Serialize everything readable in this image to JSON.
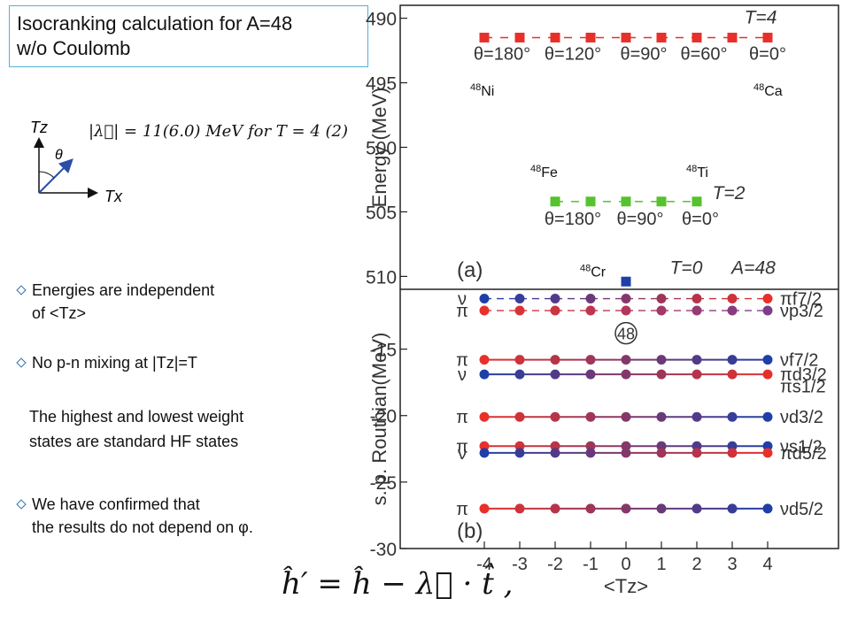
{
  "slide": {
    "title_line1": "Isocranking calculation for A=48",
    "title_line2": "w/o Coulomb",
    "bullets": [
      {
        "line1": "Energies are independent",
        "line2": "of <Tz>"
      },
      {
        "line1": "No p-n mixing  at |Tz|=T"
      },
      {
        "line1": "We have confirmed that",
        "line2": "the results do not depend on φ."
      }
    ],
    "note_line1": "The highest and lowest weight",
    "note_line2": "states are standard HF states",
    "lambda_formula": "|λ⃗| = 11(6.0) MeV for T = 4 (2)",
    "axis_tz": "Tz",
    "axis_tx": "Tx",
    "angle_symbol": "θ",
    "hamiltonian": "ĥ′ = ĥ − λ⃗ · t̂ ,"
  },
  "colors": {
    "red": "#e8302a",
    "green": "#55c22e",
    "blue": "#1f3fa8",
    "purple": "#7b3d8c",
    "title_border": "#4fb3d9"
  },
  "chart_data": [
    {
      "type": "scatter",
      "panel_label": "(a)",
      "ylabel": "Energy (MeV)",
      "ylim": [
        -511,
        -489
      ],
      "y_ticks": [
        -490,
        -495,
        -500,
        -505,
        -510
      ],
      "series": [
        {
          "name": "T=4",
          "color": "#e8302a",
          "marker": "square",
          "x": [
            -4,
            -3,
            -2,
            -1,
            0,
            1,
            2,
            3,
            4
          ],
          "y": [
            -491.5,
            -491.5,
            -491.5,
            -491.5,
            -491.5,
            -491.5,
            -491.5,
            -491.5,
            -491.5
          ]
        },
        {
          "name": "T=2",
          "color": "#55c22e",
          "marker": "square",
          "x": [
            -2,
            -1,
            0,
            1,
            2
          ],
          "y": [
            -504.2,
            -504.2,
            -504.2,
            -504.2,
            -504.2
          ]
        },
        {
          "name": "T=0",
          "color": "#1f3fa8",
          "marker": "square",
          "x": [
            0
          ],
          "y": [
            -510.4
          ]
        }
      ],
      "angle_labels_T4": [
        {
          "x": -3.5,
          "text": "θ=180°"
        },
        {
          "x": -1.5,
          "text": "θ=120°"
        },
        {
          "x": 0.5,
          "text": "θ=90°"
        },
        {
          "x": 2.2,
          "text": "θ=60°"
        },
        {
          "x": 4,
          "text": "θ=0°"
        }
      ],
      "angle_labels_T2": [
        {
          "x": -1.5,
          "text": "θ=180°"
        },
        {
          "x": 0.4,
          "text": "θ=90°"
        },
        {
          "x": 2.1,
          "text": "θ=0°"
        }
      ],
      "annotations": [
        {
          "text": "T=4",
          "x": 3.8,
          "y": -490.4
        },
        {
          "text": "T=2",
          "x": 2.9,
          "y": -504.0
        },
        {
          "text": "T=0",
          "x": 1.7,
          "y": -509.8
        },
        {
          "text": "A=48",
          "x": 3.6,
          "y": -509.8
        }
      ],
      "nuclei": [
        {
          "mass": "48",
          "symbol": "Ni",
          "x": -4.4,
          "y": -496.0
        },
        {
          "mass": "48",
          "symbol": "Ca",
          "x": 3.6,
          "y": -496.0
        },
        {
          "mass": "48",
          "symbol": "Fe",
          "x": -2.7,
          "y": -502.3
        },
        {
          "mass": "48",
          "symbol": "Ti",
          "x": 1.7,
          "y": -502.3
        },
        {
          "mass": "48",
          "symbol": "Cr",
          "x": -1.3,
          "y": -510.0
        }
      ]
    },
    {
      "type": "line",
      "panel_label": "(b)",
      "ylabel": "s. p. Routhian(MeV)",
      "xlabel": "<Tz>",
      "x_ticks": [
        -4,
        -3,
        -2,
        -1,
        0,
        1,
        2,
        3,
        4
      ],
      "ylim": [
        -30,
        -10.5
      ],
      "y_ticks": [
        -15,
        -20,
        -25,
        -30
      ],
      "x": [
        -4,
        -3,
        -2,
        -1,
        0,
        1,
        2,
        3,
        4
      ],
      "circle_label": "48",
      "series": [
        {
          "left": "ν",
          "right": "πf7/2",
          "y": -11.2,
          "start": "#1f3fa8",
          "end": "#e8302a",
          "dashed": true
        },
        {
          "left": "π",
          "right": "νp3/2",
          "y": -12.1,
          "start": "#e8302a",
          "end": "#7b3d8c",
          "dashed": true
        },
        {
          "left": "π",
          "right": "νf7/2",
          "y": -15.8,
          "start": "#e8302a",
          "end": "#1f3fa8",
          "dashed": false
        },
        {
          "left": "ν",
          "right": "πd3/2",
          "y": -16.9,
          "start": "#1f3fa8",
          "end": "#e8302a",
          "dashed": false
        },
        {
          "left": "π",
          "right": "νd3/2",
          "y": -20.1,
          "start": "#e8302a",
          "end": "#1f3fa8",
          "dashed": false
        },
        {
          "left": "π",
          "right": "νs1/2",
          "y": -22.3,
          "start": "#e8302a",
          "end": "#1f3fa8",
          "dashed": false
        },
        {
          "left": "ν",
          "right": "πd5/2",
          "y": -22.8,
          "start": "#1f3fa8",
          "end": "#e8302a",
          "dashed": false
        },
        {
          "left": "π",
          "right": "νd5/2",
          "y": -27.0,
          "start": "#e8302a",
          "end": "#1f3fa8",
          "dashed": false
        }
      ],
      "middle_right_labels": [
        {
          "label": "πs1/2",
          "y": -17.8
        }
      ]
    }
  ]
}
